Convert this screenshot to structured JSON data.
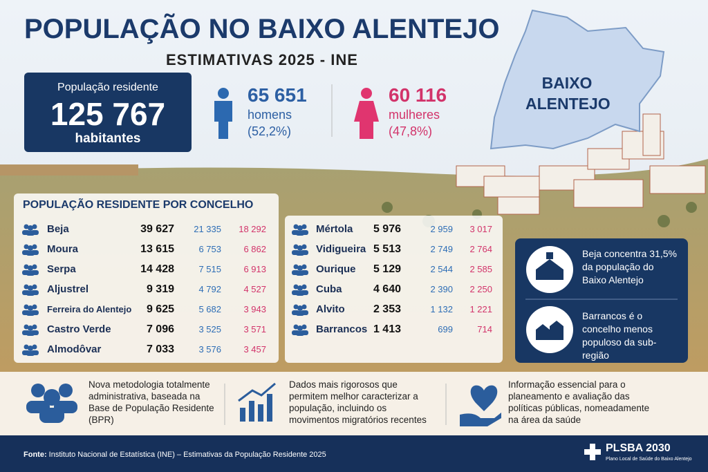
{
  "header": {
    "title": "POPULAÇÃO NO BAIXO ALENTEJO",
    "subtitle": "ESTIMATIVAS 2025 - INE"
  },
  "total": {
    "label": "População residente",
    "value": "125 767",
    "unit": "habitantes"
  },
  "men": {
    "value": "65 651",
    "label": "homens",
    "share": "(52,2%)"
  },
  "women": {
    "value": "60 116",
    "label": "mulheres",
    "share": "(47,8%)"
  },
  "map": {
    "label": "BAIXO ALENTEJO"
  },
  "table": {
    "title": "POPULAÇÃO RESIDENTE POR CONCELHO",
    "left_rows": [
      [
        "Beja",
        "39 627",
        "21 335",
        "18 292"
      ],
      [
        "Moura",
        "13 615",
        "6 753",
        "6 862"
      ],
      [
        "Serpa",
        "14 428",
        "7 515",
        "6 913"
      ],
      [
        "Aljustrel",
        "9 319",
        "4 792",
        "4 527"
      ],
      [
        "Ferreira do Alentejo",
        "9 625",
        "5 682",
        "3 943"
      ],
      [
        "Castro Verde",
        "7 096",
        "3 525",
        "3 571"
      ],
      [
        "Almodôvar",
        "7 033",
        "3 576",
        "3 457"
      ]
    ],
    "right_rows": [
      [
        "Mértola",
        "5 976",
        "2 959",
        "3 017"
      ],
      [
        "Vidigueira",
        "5 513",
        "2 749",
        "2 764"
      ],
      [
        "Ourique",
        "5 129",
        "2 544",
        "2 585"
      ],
      [
        "Cuba",
        "4 640",
        "2 390",
        "2 250"
      ],
      [
        "Alvito",
        "2 353",
        "1 132",
        "1 221"
      ],
      [
        "Barrancos",
        "1 413",
        "699",
        "714"
      ]
    ]
  },
  "highlights": [
    "Beja concentra 31,5% da população do Baixo Alentejo",
    "Barrancos é o concelho menos populoso da sub-região"
  ],
  "notes": [
    "Nova metodologia totalmente administrativa, baseada na Base de População Residente (BPR)",
    "Dados mais rigorosos que permitem melhor caracterizar a população, incluindo os movimentos migratórios recentes",
    "Informação essencial para o planeamento e avaliação das políticas públicas, nomeadamente na área da saúde"
  ],
  "source": {
    "label": "Fonte:",
    "text": "Instituto Nacional de Estatística (INE) – Estimativas da População Residente 2025"
  },
  "logo": {
    "name": "PLSBA 2030",
    "caption": "Plano Local de Saúde do Baixo Alentejo"
  }
}
